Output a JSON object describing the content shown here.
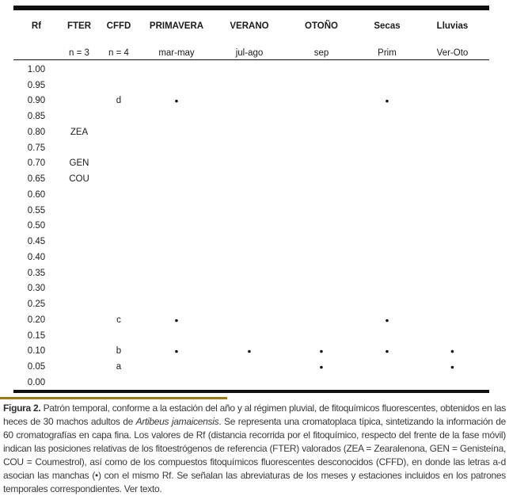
{
  "table": {
    "column_keys": [
      "rf",
      "fter",
      "cffd",
      "primavera",
      "verano",
      "otono",
      "secas",
      "lluvias"
    ],
    "headers": [
      "Rf",
      "FTER",
      "CFFD",
      "PRIMAVERA",
      "VERANO",
      "OTOÑO",
      "Secas",
      "Lluvias"
    ],
    "subheaders": [
      "",
      "n = 3",
      "n = 4",
      "mar-may",
      "jul-ago",
      "sep",
      "Prim",
      "Ver-Oto"
    ],
    "dot_symbol": "●",
    "rows": [
      [
        "1.00",
        "",
        "",
        "",
        "",
        "",
        "",
        ""
      ],
      [
        "0.95",
        "",
        "",
        "",
        "",
        "",
        "",
        ""
      ],
      [
        "0.90",
        "",
        "d",
        "●",
        "",
        "",
        "●",
        ""
      ],
      [
        "0.85",
        "",
        "",
        "",
        "",
        "",
        "",
        ""
      ],
      [
        "0.80",
        "ZEA",
        "",
        "",
        "",
        "",
        "",
        ""
      ],
      [
        "0.75",
        "",
        "",
        "",
        "",
        "",
        "",
        ""
      ],
      [
        "0.70",
        "GEN",
        "",
        "",
        "",
        "",
        "",
        ""
      ],
      [
        "0.65",
        "COU",
        "",
        "",
        "",
        "",
        "",
        ""
      ],
      [
        "0.60",
        "",
        "",
        "",
        "",
        "",
        "",
        ""
      ],
      [
        "0.55",
        "",
        "",
        "",
        "",
        "",
        "",
        ""
      ],
      [
        "0.50",
        "",
        "",
        "",
        "",
        "",
        "",
        ""
      ],
      [
        "0.45",
        "",
        "",
        "",
        "",
        "",
        "",
        ""
      ],
      [
        "0.40",
        "",
        "",
        "",
        "",
        "",
        "",
        ""
      ],
      [
        "0.35",
        "",
        "",
        "",
        "",
        "",
        "",
        ""
      ],
      [
        "0.30",
        "",
        "",
        "",
        "",
        "",
        "",
        ""
      ],
      [
        "0.25",
        "",
        "",
        "",
        "",
        "",
        "",
        ""
      ],
      [
        "0.20",
        "",
        "c",
        "●",
        "",
        "",
        "●",
        ""
      ],
      [
        "0.15",
        "",
        "",
        "",
        "",
        "",
        "",
        ""
      ],
      [
        "0.10",
        "",
        "b",
        "●",
        "●",
        "●",
        "●",
        "●"
      ],
      [
        "0.05",
        "",
        "a",
        "",
        "",
        "●",
        "",
        "●"
      ],
      [
        "0.00",
        "",
        "",
        "",
        "",
        "",
        "",
        ""
      ]
    ]
  },
  "chart_data": {
    "type": "table",
    "title": "Cromatoplaca típica (TLC): Rf de fitoquímicos fluorescentes por estación y régimen pluvial",
    "rf_axis": {
      "min": 0.0,
      "max": 1.0,
      "step": 0.05
    },
    "reference_compounds": [
      {
        "rf": 0.8,
        "label": "ZEA"
      },
      {
        "rf": 0.7,
        "label": "GEN"
      },
      {
        "rf": 0.65,
        "label": "COU"
      }
    ],
    "spots": [
      {
        "rf": 0.9,
        "cffd_letter": "d",
        "columns": [
          "PRIMAVERA",
          "Secas"
        ]
      },
      {
        "rf": 0.2,
        "cffd_letter": "c",
        "columns": [
          "PRIMAVERA",
          "Secas"
        ]
      },
      {
        "rf": 0.1,
        "cffd_letter": "b",
        "columns": [
          "PRIMAVERA",
          "VERANO",
          "OTOÑO",
          "Secas",
          "Lluvias"
        ]
      },
      {
        "rf": 0.05,
        "cffd_letter": "a",
        "columns": [
          "OTOÑO",
          "Lluvias"
        ]
      }
    ],
    "sample_sizes": {
      "FTER": "n = 3",
      "CFFD": "n = 4"
    },
    "column_sublabels": {
      "PRIMAVERA": "mar-may",
      "VERANO": "jul-ago",
      "OTOÑO": "sep",
      "Secas": "Prim",
      "Lluvias": "Ver-Oto"
    }
  },
  "caption": {
    "label": "Figura 2.",
    "text_before_species": " Patrón temporal, conforme a la estación del año y al régimen pluvial, de fitoquímicos fluorescentes, obtenidos en las heces de 30 machos adultos de ",
    "species_italic": "Artibeus jamaicensis",
    "text_after_species": ". Se representa una cromatoplaca típica, sintetizando la información de 60 cromatografías en capa fina. Los valores de Rf (distancia recorrida por el fitoquímico, respecto del frente de la fase móvil) indican las posiciones relativas de los fitoestrógenos de referencia (FTER) valorados (ZEA = Zearalenona, GEN = Genisteína, COU = Coumestrol), así como de los compuestos fitoquímicos fluorescentes desconocidos (CFFD), en donde las letras a-d asocian las manchas (•) con el mismo Rf. Se señalan las abreviaturas de los meses y estaciones incluidos en los patrones temporales correspondientes. Ver texto."
  },
  "colors": {
    "accent_rule": "#9e7a15",
    "table_rule": "#101010",
    "text": "#1b1b1b"
  }
}
